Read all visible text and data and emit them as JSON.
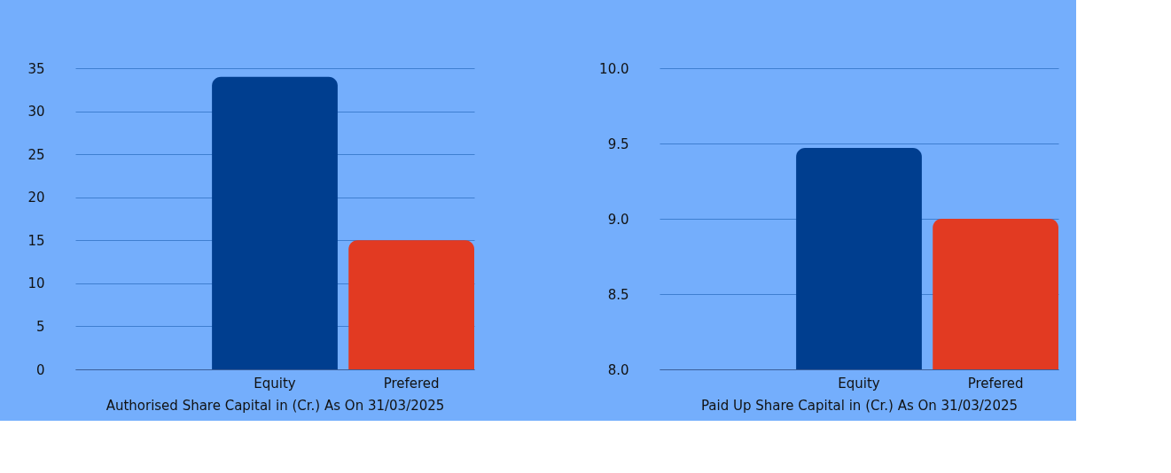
{
  "chart_data": [
    {
      "type": "bar",
      "xlabel": "Authorised Share Capital in (Cr.) As On 31/03/2025",
      "categories": [
        null,
        "Equity",
        "Prefered"
      ],
      "values": [
        null,
        34,
        15
      ],
      "colors": [
        null,
        "#003e8f",
        "#e23a22"
      ],
      "ylim": [
        0,
        35
      ],
      "yticks": [
        0,
        5,
        10,
        15,
        20,
        25,
        30,
        35
      ],
      "grid": "y"
    },
    {
      "type": "bar",
      "xlabel": "Paid Up Share Capital in (Cr.) As On 31/03/2025",
      "categories": [
        null,
        "Equity",
        "Prefered"
      ],
      "values": [
        null,
        9.47,
        9.0
      ],
      "colors": [
        null,
        "#003e8f",
        "#e23a22"
      ],
      "ylim": [
        8.0,
        10.0
      ],
      "yticks": [
        {
          "value": 8.0,
          "label": "8.0"
        },
        {
          "value": 8.5,
          "label": "8.5"
        },
        {
          "value": 9.0,
          "label": "9.0"
        },
        {
          "value": 9.5,
          "label": "9.5"
        },
        {
          "value": 10.0,
          "label": "10.0"
        }
      ],
      "grid": "y"
    }
  ]
}
